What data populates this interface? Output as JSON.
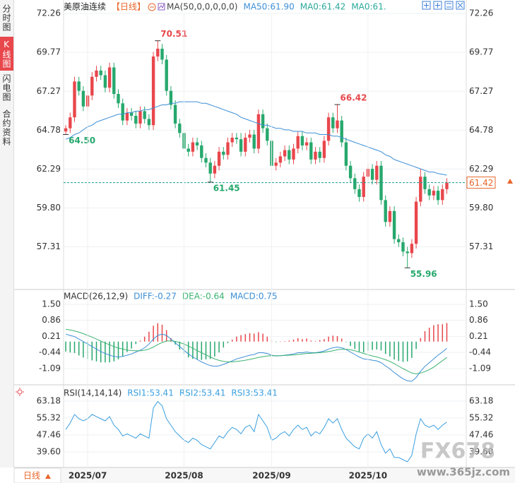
{
  "sidebar": {
    "tabs": [
      "分时图",
      "K线图",
      "闪电图",
      "合约资料"
    ]
  },
  "period_button": "日线",
  "watermark": [
    "FX678",
    "www.365jz.com"
  ],
  "chart_data": [
    {
      "type": "candlestick",
      "title": "美原油连续",
      "period": "【日线】",
      "ma_label": "MA(50,0,0,0,0,0)",
      "up_color": "#e8474c",
      "down_color": "#27a86d",
      "open": [
        64.7,
        64.9,
        65.6,
        67.9,
        67.3,
        66.3,
        67.0,
        68.2,
        68.6,
        68.3,
        67.5,
        68.8,
        67.1,
        66.5,
        65.4,
        65.9,
        65.7,
        65.2,
        66.0,
        65.5,
        65.1,
        69.5,
        70.0,
        69.3,
        67.3,
        66.4,
        65.2,
        64.6,
        63.6,
        63.4,
        64.0,
        63.8,
        63.0,
        62.7,
        62.0,
        62.5,
        63.4,
        63.2,
        64.0,
        64.3,
        64.2,
        63.4,
        64.3,
        64.5,
        63.6,
        65.8,
        64.9,
        64.1,
        62.5,
        62.7,
        63.1,
        63.5,
        62.9,
        63.6,
        64.4,
        63.8,
        64.0,
        62.9,
        63.4,
        63.0,
        64.1,
        65.6,
        64.9,
        65.4,
        64.0,
        62.5,
        61.7,
        61.0,
        60.5,
        61.8,
        62.3,
        61.6,
        62.5,
        60.3,
        58.9,
        59.6,
        57.8,
        57.6,
        57.0,
        56.9,
        57.5,
        60.2,
        61.8,
        61.0,
        60.6,
        60.9,
        60.3,
        61.0
      ],
      "high": [
        65.1,
        65.9,
        68.2,
        68.2,
        67.6,
        67.3,
        68.5,
        68.9,
        68.9,
        68.6,
        69.1,
        69.1,
        67.4,
        66.8,
        66.2,
        66.2,
        66.0,
        66.3,
        66.3,
        65.8,
        69.8,
        70.51,
        70.3,
        69.6,
        67.6,
        66.7,
        65.5,
        64.9,
        63.9,
        64.3,
        64.3,
        64.1,
        63.3,
        63.0,
        62.8,
        63.7,
        63.7,
        64.3,
        64.6,
        64.6,
        64.6,
        64.6,
        64.8,
        64.8,
        66.1,
        66.1,
        65.2,
        64.4,
        63.0,
        63.4,
        63.8,
        63.8,
        63.9,
        64.7,
        64.7,
        64.3,
        64.3,
        63.7,
        63.7,
        64.4,
        65.9,
        65.9,
        66.42,
        65.7,
        64.3,
        62.8,
        62.0,
        61.3,
        62.1,
        62.6,
        62.6,
        62.8,
        62.8,
        60.6,
        59.9,
        59.9,
        58.1,
        57.9,
        57.3,
        57.8,
        60.5,
        62.3,
        62.1,
        61.3,
        61.2,
        61.2,
        61.3,
        61.7
      ],
      "low": [
        64.5,
        64.6,
        65.3,
        67.0,
        66.0,
        66.0,
        66.7,
        67.9,
        68.0,
        67.2,
        67.2,
        66.8,
        66.2,
        65.1,
        65.1,
        65.4,
        64.9,
        64.9,
        65.2,
        64.8,
        64.8,
        69.2,
        69.0,
        67.0,
        66.1,
        64.9,
        64.3,
        63.3,
        63.1,
        63.1,
        63.5,
        62.7,
        62.4,
        61.45,
        61.7,
        62.2,
        62.9,
        62.9,
        63.7,
        63.9,
        63.1,
        63.1,
        64.0,
        63.3,
        63.3,
        64.6,
        63.8,
        62.2,
        62.2,
        62.4,
        62.8,
        62.6,
        62.6,
        63.3,
        63.5,
        63.5,
        62.6,
        62.6,
        62.7,
        62.7,
        63.8,
        64.6,
        64.6,
        63.7,
        62.2,
        61.4,
        60.7,
        60.2,
        60.2,
        61.5,
        61.3,
        61.3,
        60.0,
        58.6,
        58.6,
        57.5,
        57.3,
        56.7,
        55.96,
        56.6,
        57.2,
        59.9,
        60.7,
        60.3,
        60.3,
        60.0,
        60.0,
        60.7
      ],
      "close": [
        64.9,
        65.6,
        67.9,
        67.3,
        66.3,
        67.0,
        68.2,
        68.6,
        68.3,
        67.5,
        68.8,
        67.1,
        66.5,
        65.4,
        65.9,
        65.7,
        65.2,
        66.0,
        65.5,
        65.1,
        69.5,
        70.0,
        69.3,
        67.3,
        66.4,
        65.2,
        64.6,
        63.6,
        63.4,
        64.0,
        63.8,
        63.0,
        62.7,
        62.0,
        62.5,
        63.4,
        63.2,
        64.0,
        64.3,
        64.2,
        63.4,
        64.3,
        64.5,
        63.6,
        65.8,
        64.9,
        64.1,
        62.5,
        62.7,
        63.1,
        63.5,
        62.9,
        63.6,
        64.4,
        63.8,
        64.0,
        62.9,
        63.4,
        63.0,
        64.1,
        65.6,
        64.9,
        65.4,
        64.0,
        62.5,
        61.7,
        61.0,
        60.5,
        61.8,
        62.3,
        61.6,
        62.5,
        60.3,
        58.9,
        59.6,
        57.8,
        57.6,
        57.0,
        56.9,
        57.5,
        60.2,
        61.8,
        61.0,
        60.6,
        60.9,
        60.3,
        61.0,
        61.42
      ],
      "series": [
        {
          "name": "MA50:61.90",
          "color": "#3d8fd6",
          "values": [
            64.2,
            64.3,
            64.5,
            64.6,
            64.8,
            65.0,
            65.1,
            65.3,
            65.4,
            65.5,
            65.6,
            65.7,
            65.8,
            65.8,
            65.9,
            65.9,
            66.0,
            66.0,
            66.1,
            66.1,
            66.2,
            66.3,
            66.4,
            66.4,
            66.5,
            66.5,
            66.6,
            66.6,
            66.6,
            66.6,
            66.6,
            66.5,
            66.5,
            66.4,
            66.3,
            66.2,
            66.1,
            66.0,
            65.9,
            65.8,
            65.6,
            65.5,
            65.4,
            65.3,
            65.2,
            65.1,
            65.1,
            65.0,
            64.9,
            64.9,
            64.8,
            64.8,
            64.7,
            64.7,
            64.7,
            64.6,
            64.6,
            64.6,
            64.5,
            64.5,
            64.5,
            64.4,
            64.4,
            64.3,
            64.2,
            64.1,
            64.0,
            63.9,
            63.8,
            63.7,
            63.6,
            63.5,
            63.4,
            63.2,
            63.1,
            62.9,
            62.8,
            62.7,
            62.6,
            62.5,
            62.4,
            62.3,
            62.2,
            62.1,
            62.1,
            62.0,
            61.95,
            61.9
          ]
        }
      ],
      "legend_extra": [
        {
          "name": "MA0:61.42",
          "color": "#2aa89a"
        },
        {
          "name": "MA0:61.",
          "color": "#2aa89a"
        }
      ],
      "last_price_color": "#1a9e8f",
      "annotations": [
        "70.51",
        "64.50",
        "61.45",
        "66.42",
        "55.96"
      ],
      "ylim": [
        54.57,
        73.12
      ],
      "yticks": [
        57.31,
        {
          "value": 59.8,
          "label": "59.80"
        },
        62.29,
        64.78,
        67.27,
        69.77,
        72.26
      ],
      "grid": true
    },
    {
      "type": "macd",
      "title": "MACD(26,12,9)",
      "series": [
        {
          "name": "DIFF:-0.27",
          "color": "#3d8fd6",
          "values": [
            0.3,
            0.25,
            0.2,
            0.1,
            0.0,
            -0.1,
            -0.2,
            -0.3,
            -0.4,
            -0.48,
            -0.55,
            -0.6,
            -0.62,
            -0.6,
            -0.55,
            -0.5,
            -0.42,
            -0.35,
            -0.25,
            -0.1,
            0.1,
            0.25,
            0.3,
            0.25,
            0.1,
            -0.05,
            -0.2,
            -0.35,
            -0.5,
            -0.62,
            -0.72,
            -0.82,
            -0.9,
            -0.97,
            -1.0,
            -0.98,
            -0.92,
            -0.85,
            -0.78,
            -0.7,
            -0.65,
            -0.6,
            -0.55,
            -0.52,
            -0.45,
            -0.45,
            -0.48,
            -0.55,
            -0.58,
            -0.57,
            -0.55,
            -0.53,
            -0.5,
            -0.45,
            -0.45,
            -0.42,
            -0.45,
            -0.45,
            -0.42,
            -0.38,
            -0.3,
            -0.25,
            -0.22,
            -0.25,
            -0.32,
            -0.42,
            -0.52,
            -0.62,
            -0.7,
            -0.72,
            -0.75,
            -0.78,
            -0.85,
            -0.98,
            -1.1,
            -1.25,
            -1.38,
            -1.5,
            -1.58,
            -1.6,
            -1.45,
            -1.2,
            -1.0,
            -0.85,
            -0.7,
            -0.55,
            -0.42,
            -0.27
          ]
        },
        {
          "name": "DEA:-0.64",
          "color": "#3cb371",
          "values": [
            0.5,
            0.47,
            0.43,
            0.38,
            0.32,
            0.25,
            0.18,
            0.1,
            0.02,
            -0.06,
            -0.13,
            -0.2,
            -0.26,
            -0.3,
            -0.34,
            -0.36,
            -0.37,
            -0.37,
            -0.35,
            -0.3,
            -0.22,
            -0.12,
            -0.04,
            0.02,
            0.03,
            0.01,
            -0.04,
            -0.1,
            -0.18,
            -0.27,
            -0.36,
            -0.45,
            -0.54,
            -0.62,
            -0.7,
            -0.76,
            -0.8,
            -0.82,
            -0.82,
            -0.8,
            -0.78,
            -0.75,
            -0.72,
            -0.68,
            -0.64,
            -0.61,
            -0.58,
            -0.57,
            -0.57,
            -0.57,
            -0.56,
            -0.55,
            -0.54,
            -0.52,
            -0.5,
            -0.48,
            -0.47,
            -0.46,
            -0.45,
            -0.43,
            -0.4,
            -0.37,
            -0.33,
            -0.31,
            -0.31,
            -0.33,
            -0.37,
            -0.42,
            -0.48,
            -0.53,
            -0.58,
            -0.62,
            -0.67,
            -0.73,
            -0.8,
            -0.89,
            -0.99,
            -1.09,
            -1.18,
            -1.27,
            -1.3,
            -1.27,
            -1.21,
            -1.13,
            -1.03,
            -0.9,
            -0.77,
            -0.64
          ]
        }
      ],
      "histogram": {
        "name": "MACD:0.75",
        "color": "#3d8fd6",
        "up_color": "#e8474c",
        "down_color": "#27a86d",
        "values": [
          -0.4,
          -0.44,
          -0.46,
          -0.56,
          -0.64,
          -0.7,
          -0.76,
          -0.8,
          -0.84,
          -0.84,
          -0.84,
          -0.8,
          -0.72,
          -0.6,
          -0.42,
          -0.28,
          -0.1,
          0.04,
          0.2,
          0.4,
          0.64,
          0.74,
          0.68,
          0.46,
          0.14,
          -0.12,
          -0.32,
          -0.5,
          -0.64,
          -0.7,
          -0.72,
          -0.74,
          -0.72,
          -0.7,
          -0.6,
          -0.44,
          -0.24,
          -0.06,
          0.08,
          0.2,
          0.26,
          0.3,
          0.34,
          0.32,
          0.38,
          0.32,
          0.2,
          0.04,
          -0.02,
          0.0,
          0.02,
          0.04,
          0.08,
          0.14,
          0.1,
          0.12,
          0.04,
          0.02,
          0.06,
          0.1,
          0.2,
          0.24,
          0.22,
          0.12,
          -0.02,
          -0.18,
          -0.3,
          -0.4,
          -0.44,
          -0.38,
          -0.34,
          -0.32,
          -0.36,
          -0.5,
          -0.6,
          -0.72,
          -0.78,
          -0.82,
          -0.8,
          -0.66,
          -0.3,
          0.14,
          0.42,
          0.56,
          0.66,
          0.7,
          0.7,
          0.75
        ]
      },
      "ylim": [
        -1.745,
        2.1
      ],
      "yticks": [
        -1.09,
        -0.44,
        0.21,
        0.86,
        {
          "value": 1.5,
          "label": "1.50"
        }
      ],
      "grid": true
    },
    {
      "type": "line",
      "title": "RSI(14,14,14)",
      "series": [
        {
          "name": "RSI1:53.41",
          "color": "#3a9fe0",
          "values": [
            50,
            53,
            57,
            55,
            54,
            55,
            57,
            56,
            55,
            54,
            56,
            52,
            50,
            47,
            48,
            47,
            46,
            48,
            47,
            46,
            60,
            63,
            61,
            55,
            52,
            49,
            47,
            45,
            44,
            46,
            45,
            43,
            42,
            41,
            44,
            47,
            46,
            49,
            51,
            50,
            48,
            51,
            52,
            49,
            57,
            54,
            51,
            45,
            46,
            48,
            49,
            47,
            50,
            52,
            50,
            51,
            47,
            49,
            48,
            51,
            55,
            53,
            55,
            50,
            46,
            44,
            42,
            41,
            46,
            48,
            46,
            49,
            43,
            39,
            41,
            37,
            37,
            36,
            35,
            38,
            48,
            55,
            52,
            51,
            52,
            50,
            52,
            53.41
          ]
        }
      ],
      "legend_extra": [
        {
          "name": "RSI2:53.41",
          "color": "#3a9fe0"
        },
        {
          "name": "RSI3:53.41",
          "color": "#3a9fe0"
        }
      ],
      "categories": [
        null,
        null,
        null,
        null,
        null,
        "2025/07",
        null,
        null,
        null,
        null,
        null,
        null,
        null,
        null,
        null,
        null,
        null,
        null,
        null,
        null,
        null,
        null,
        null,
        null,
        null,
        null,
        null,
        "2025/08",
        null,
        null,
        null,
        null,
        null,
        null,
        null,
        null,
        null,
        null,
        null,
        null,
        null,
        null,
        null,
        null,
        null,
        null,
        null,
        "2025/09",
        null,
        null,
        null,
        null,
        null,
        null,
        null,
        null,
        null,
        null,
        null,
        null,
        null,
        null,
        null,
        null,
        null,
        null,
        null,
        null,
        null,
        "2025/10",
        null,
        null,
        null,
        null,
        null,
        null,
        null,
        null,
        null,
        null,
        null,
        null,
        null,
        null,
        null,
        null,
        null,
        null
      ],
      "ylim": [
        32.39,
        70.72
      ],
      "yticks": [
        {
          "value": 39.6,
          "label": "39.60"
        },
        47.46,
        55.32,
        63.18
      ],
      "grid": true
    }
  ]
}
